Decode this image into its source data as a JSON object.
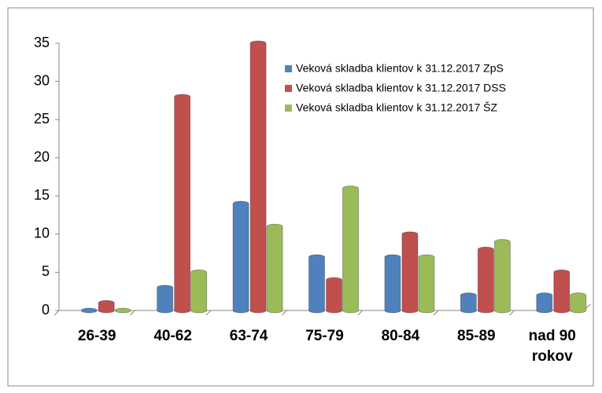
{
  "chart_data": {
    "type": "bar",
    "categories": [
      "26-39",
      "40-62",
      "63-74",
      "75-79",
      "80-84",
      "85-89",
      "nad 90 rokov"
    ],
    "series": [
      {
        "name": "Veková skladba klientov k 31.12.2017 ZpS",
        "color": "#4f81bd",
        "values": [
          0,
          3,
          14,
          7,
          7,
          2,
          2
        ]
      },
      {
        "name": "Veková skladba klientov k 31.12.2017 DSS",
        "color": "#c0504d",
        "values": [
          1,
          28,
          35,
          4,
          10,
          8,
          5
        ]
      },
      {
        "name": "Veková skladba klientov k 31.12.2017 ŠZ",
        "color": "#9bbb59",
        "values": [
          0,
          5,
          11,
          16,
          7,
          9,
          2
        ]
      }
    ],
    "ylim": [
      0,
      35
    ],
    "yticks": [
      0,
      5,
      10,
      15,
      20,
      25,
      30,
      35
    ],
    "grid": false,
    "legend": "top-right"
  }
}
